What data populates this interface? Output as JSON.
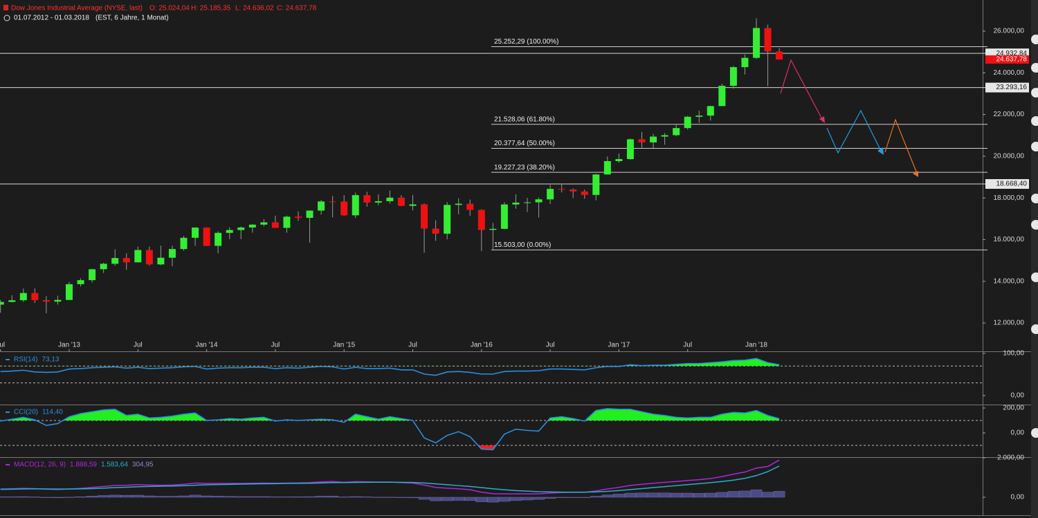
{
  "chart_data": [
    {
      "type": "candlestick",
      "title": "Dow Jones Industrial Average (NYSE, last)",
      "ohlc_labels": [
        "O: 25.024,04",
        "H: 25.185,35",
        "L: 24.636,02",
        "C: 24.637,78"
      ],
      "subtitle": "01.07.2012 - 01.03.2018",
      "period": "(EST, 6 Jahre, 1 Monat)",
      "up_color": "#33ee33",
      "down_color": "#ee1111",
      "x": [
        "2012-07",
        "2012-08",
        "2012-09",
        "2012-10",
        "2012-11",
        "2012-12",
        "2013-01",
        "2013-02",
        "2013-03",
        "2013-04",
        "2013-05",
        "2013-06",
        "2013-07",
        "2013-08",
        "2013-09",
        "2013-10",
        "2013-11",
        "2013-12",
        "2014-01",
        "2014-02",
        "2014-03",
        "2014-04",
        "2014-05",
        "2014-06",
        "2014-07",
        "2014-08",
        "2014-09",
        "2014-10",
        "2014-11",
        "2014-12",
        "2015-01",
        "2015-02",
        "2015-03",
        "2015-04",
        "2015-05",
        "2015-06",
        "2015-07",
        "2015-08",
        "2015-09",
        "2015-10",
        "2015-11",
        "2015-12",
        "2016-01",
        "2016-02",
        "2016-03",
        "2016-04",
        "2016-05",
        "2016-06",
        "2016-07",
        "2016-08",
        "2016-09",
        "2016-10",
        "2016-11",
        "2016-12",
        "2017-01",
        "2017-02",
        "2017-03",
        "2017-04",
        "2017-05",
        "2017-06",
        "2017-07",
        "2017-08",
        "2017-09",
        "2017-10",
        "2017-11",
        "2017-12",
        "2018-01",
        "2018-02",
        "2018-03"
      ],
      "open": [
        12880,
        13009,
        13090,
        13437,
        13096,
        13025,
        13104,
        13861,
        14054,
        14579,
        14840,
        15116,
        14910,
        15500,
        14810,
        15130,
        15546,
        16086,
        16577,
        15699,
        16322,
        16458,
        16581,
        16717,
        16827,
        16563,
        17098,
        17043,
        17391,
        17828,
        17823,
        17165,
        18133,
        17776,
        17841,
        18011,
        17620,
        17690,
        16528,
        16285,
        17664,
        17720,
        17425,
        16466,
        16517,
        17685,
        17774,
        17787,
        17930,
        18432,
        18401,
        18308,
        18142,
        19124,
        19763,
        19864,
        20812,
        20663,
        20940,
        21009,
        21350,
        21891,
        21948,
        22405,
        23377,
        24272,
        24719,
        26149,
        25024.04
      ],
      "high": [
        13100,
        13330,
        13650,
        13660,
        13290,
        13310,
        13970,
        14150,
        14590,
        14890,
        15540,
        15340,
        15660,
        15660,
        15710,
        15710,
        16170,
        16590,
        16590,
        16400,
        16590,
        16630,
        16740,
        16980,
        17150,
        17150,
        17350,
        17400,
        17900,
        18100,
        18130,
        18250,
        18290,
        18170,
        18350,
        18130,
        18140,
        17730,
        16930,
        17800,
        17980,
        17920,
        17450,
        16800,
        17790,
        18170,
        18000,
        18020,
        18620,
        18670,
        18450,
        18400,
        19150,
        19990,
        20130,
        20850,
        21170,
        21070,
        21110,
        21540,
        21930,
        22180,
        22420,
        23480,
        24330,
        24880,
        26620,
        26310,
        25185.35
      ],
      "low": [
        12490,
        12990,
        13010,
        12960,
        12470,
        12880,
        13100,
        13750,
        13940,
        14400,
        14750,
        14550,
        14900,
        14760,
        14770,
        14720,
        15470,
        15700,
        15690,
        15340,
        16020,
        16020,
        16330,
        16640,
        16560,
        16330,
        16900,
        15850,
        17200,
        17070,
        17140,
        17040,
        17580,
        17650,
        17730,
        17600,
        17400,
        15370,
        15940,
        16010,
        17210,
        17140,
        15450,
        15500,
        16500,
        17480,
        17330,
        17060,
        17710,
        18260,
        17990,
        17960,
        17880,
        19120,
        19680,
        19830,
        20410,
        20380,
        20550,
        20960,
        21280,
        21600,
        21710,
        22400,
        23240,
        23920,
        24660,
        23360,
        24636.02
      ],
      "close": [
        13009,
        13090,
        13437,
        13096,
        13025,
        13104,
        13861,
        14054,
        14579,
        14840,
        15116,
        14910,
        15500,
        14810,
        15130,
        15546,
        16086,
        16577,
        15699,
        16322,
        16458,
        16581,
        16717,
        16827,
        16563,
        17098,
        17043,
        17391,
        17828,
        17823,
        17165,
        18133,
        17776,
        17841,
        18011,
        17620,
        17690,
        16528,
        16285,
        17664,
        17720,
        17425,
        16466,
        16517,
        17685,
        17774,
        17787,
        17930,
        18432,
        18401,
        18308,
        18142,
        19124,
        19763,
        19864,
        20812,
        20663,
        20940,
        21009,
        21350,
        21891,
        21948,
        22405,
        23377,
        24272,
        24719,
        26149,
        25029,
        24637.78
      ],
      "xticks": [
        {
          "value": "2012-07",
          "label": "Jul"
        },
        {
          "value": "2013-01",
          "label": "Jan '13"
        },
        {
          "value": "2013-07",
          "label": "Jul"
        },
        {
          "value": "2014-01",
          "label": "Jan '14"
        },
        {
          "value": "2014-07",
          "label": "Jul"
        },
        {
          "value": "2015-01",
          "label": "Jan '15"
        },
        {
          "value": "2015-07",
          "label": "Jul"
        },
        {
          "value": "2016-01",
          "label": "Jan '16"
        },
        {
          "value": "2016-07",
          "label": "Jul"
        },
        {
          "value": "2017-01",
          "label": "Jan '17"
        },
        {
          "value": "2017-07",
          "label": "Jul"
        },
        {
          "value": "2018-01",
          "label": "Jan '18"
        }
      ],
      "ylim": [
        10640,
        27493
      ],
      "yticks": [
        {
          "value": 12000,
          "label": "12.000,00"
        },
        {
          "value": 14000,
          "label": "14.000,00"
        },
        {
          "value": 16000,
          "label": "16.000,00"
        },
        {
          "value": 18000,
          "label": "18.000,00"
        },
        {
          "value": 20000,
          "label": "20.000,00"
        },
        {
          "value": 22000,
          "label": "22.000,00"
        },
        {
          "value": 24000,
          "label": "24.000,00"
        },
        {
          "value": 26000,
          "label": "26.000,00"
        }
      ],
      "levels": [
        {
          "value": 24932.84,
          "label": "24.932,84"
        },
        {
          "value": 23293.16,
          "label": "23.293,16"
        },
        {
          "value": 18668.4,
          "label": "18.668,40"
        }
      ],
      "fib_levels": [
        {
          "value": 25252.29,
          "label": "25.252,29 (100.00%)"
        },
        {
          "value": 21528.06,
          "label": "21.528,06 (61.80%)"
        },
        {
          "value": 20377.64,
          "label": "20.377,64 (50.00%)"
        },
        {
          "value": 19227.23,
          "label": "19.227,23 (38.20%)"
        },
        {
          "value": 15503.0,
          "label": "15.503,00 (0.00%)"
        }
      ],
      "last_price": {
        "value": 24637.78,
        "label": "24.637,78"
      }
    },
    {
      "type": "indicator",
      "series": [
        {
          "name": "RSI(14)",
          "color": "#2a8fe0",
          "last_label": "73,13",
          "values": [
            57,
            58,
            60,
            56,
            55,
            56,
            63,
            64,
            66,
            67,
            68,
            65,
            67,
            64,
            65,
            66,
            68,
            69,
            63,
            65,
            66,
            66,
            67,
            67,
            64,
            66,
            65,
            67,
            69,
            68,
            63,
            67,
            64,
            64,
            65,
            61,
            61,
            51,
            48,
            56,
            57,
            55,
            51,
            51,
            57,
            58,
            58,
            59,
            63,
            63,
            62,
            61,
            66,
            69,
            69,
            73,
            71,
            72,
            72,
            74,
            76,
            76,
            78,
            80,
            83,
            84,
            88,
            78,
            73.13
          ]
        }
      ],
      "ylim": [
        -19.7,
        101.6
      ],
      "yticks": [
        {
          "value": 0,
          "label": "0,00"
        },
        {
          "value": 100,
          "label": "100,00"
        }
      ],
      "thresholds": [
        70,
        30
      ],
      "fill_above": 70
    },
    {
      "type": "indicator",
      "series": [
        {
          "name": "CCI(20)",
          "color": "#2a8fe0",
          "last_label": "114,40",
          "values": [
            95,
            110,
            125,
            105,
            60,
            75,
            130,
            155,
            170,
            185,
            190,
            140,
            150,
            120,
            125,
            135,
            150,
            160,
            100,
            105,
            115,
            110,
            120,
            125,
            95,
            105,
            100,
            105,
            110,
            105,
            85,
            150,
            130,
            110,
            130,
            115,
            100,
            -40,
            -80,
            -20,
            10,
            -30,
            -130,
            -135,
            -10,
            30,
            20,
            15,
            120,
            130,
            115,
            95,
            180,
            195,
            190,
            190,
            170,
            150,
            140,
            125,
            120,
            125,
            125,
            150,
            165,
            160,
            180,
            140,
            114.4
          ]
        }
      ],
      "ylim": [
        -189,
        222
      ],
      "yticks": [
        {
          "value": 0,
          "label": "0,00"
        },
        {
          "value": 200,
          "label": "200,00"
        }
      ],
      "thresholds": [
        100,
        -100
      ],
      "fill_above": 100,
      "fill_below": -100
    },
    {
      "type": "macd",
      "series": [
        {
          "name": "MACD(12, 26, 9)",
          "color": "#b026e0",
          "last_label": "1.888,59",
          "values": [
            420,
            430,
            450,
            440,
            410,
            390,
            420,
            450,
            500,
            550,
            600,
            610,
            640,
            620,
            610,
            620,
            660,
            720,
            700,
            700,
            700,
            700,
            710,
            720,
            710,
            720,
            730,
            740,
            780,
            800,
            760,
            790,
            780,
            770,
            770,
            740,
            720,
            620,
            500,
            460,
            430,
            380,
            260,
            180,
            170,
            170,
            170,
            170,
            210,
            240,
            250,
            250,
            320,
            420,
            500,
            600,
            660,
            710,
            760,
            800,
            850,
            890,
            950,
            1050,
            1170,
            1280,
            1480,
            1560,
            1888.59
          ]
        },
        {
          "color": "#2ab0c8",
          "last_label": "1.583,64",
          "values": [
            400,
            410,
            420,
            425,
            420,
            415,
            415,
            425,
            440,
            460,
            490,
            510,
            535,
            550,
            560,
            570,
            590,
            610,
            630,
            645,
            655,
            665,
            675,
            685,
            690,
            700,
            705,
            710,
            725,
            740,
            745,
            755,
            760,
            765,
            765,
            760,
            750,
            725,
            680,
            635,
            590,
            550,
            490,
            430,
            380,
            340,
            310,
            280,
            270,
            260,
            260,
            260,
            270,
            300,
            340,
            390,
            440,
            490,
            540,
            590,
            640,
            690,
            740,
            800,
            870,
            960,
            1100,
            1300,
            1583.64
          ]
        },
        {
          "color": "#4a4a86",
          "last_label": "304,95",
          "values": [
            20,
            20,
            30,
            15,
            -10,
            -25,
            5,
            25,
            60,
            90,
            110,
            100,
            105,
            70,
            50,
            50,
            70,
            110,
            70,
            55,
            45,
            35,
            35,
            35,
            20,
            20,
            25,
            30,
            55,
            60,
            15,
            35,
            20,
            5,
            5,
            -20,
            -30,
            -105,
            -180,
            -175,
            -160,
            -170,
            -230,
            -250,
            -210,
            -170,
            -140,
            -110,
            -60,
            -20,
            -10,
            -10,
            50,
            120,
            160,
            210,
            220,
            220,
            220,
            210,
            210,
            200,
            210,
            250,
            300,
            320,
            380,
            260,
            304.95
          ]
        }
      ],
      "ylim": [
        -912,
        2000
      ],
      "yticks": [
        {
          "value": 0,
          "label": "0,00"
        },
        {
          "value": 2000,
          "label": "2.000,00"
        }
      ]
    }
  ]
}
